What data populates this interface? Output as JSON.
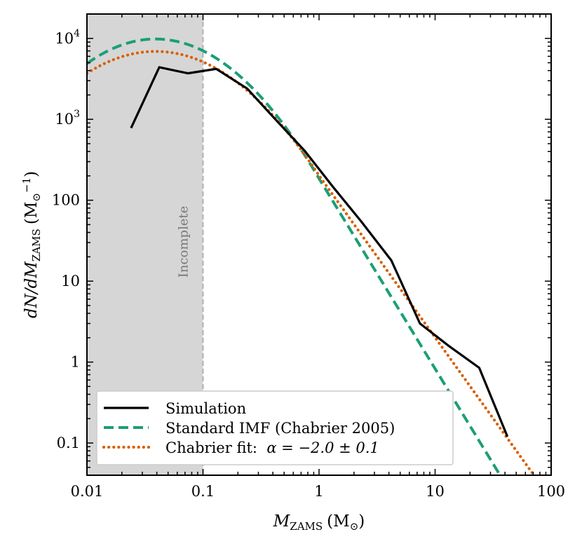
{
  "chart_data": {
    "type": "line",
    "xscale": "log",
    "yscale": "log",
    "xlim": [
      0.01,
      100
    ],
    "ylim": [
      0.04,
      20000
    ],
    "xlabel_main": "M",
    "xlabel_sub": "ZAMS",
    "xlabel_unit": "(M",
    "xlabel_unit_sub": "⊙",
    "xlabel_close": ")",
    "ylabel_main": "dN/dM",
    "ylabel_sub": "ZAMS",
    "ylabel_unit": "(M",
    "ylabel_unit_sub": "⊙",
    "ylabel_unit_sup": "−1",
    "ylabel_close": ")",
    "x_ticks": [
      {
        "value": 0.01,
        "label": "0.01"
      },
      {
        "value": 0.1,
        "label": "0.1"
      },
      {
        "value": 1,
        "label": "1"
      },
      {
        "value": 10,
        "label": "10"
      },
      {
        "value": 100,
        "label": "100"
      }
    ],
    "y_ticks": [
      {
        "value": 0.1,
        "label": "0.1"
      },
      {
        "value": 1,
        "label": "1"
      },
      {
        "value": 10,
        "label": "10"
      },
      {
        "value": 100,
        "label": "100"
      },
      {
        "value": 1000,
        "label_base": "10",
        "label_exp": "3"
      },
      {
        "value": 10000,
        "label_base": "10",
        "label_exp": "4"
      }
    ],
    "shaded_region": {
      "x_start": 0.01,
      "x_end": 0.1,
      "label": "Incomplete",
      "color": "#d6d6d6",
      "line_color": "#b0b0b0"
    },
    "series": [
      {
        "name": "Simulation",
        "color": "#000000",
        "style": "solid",
        "x": [
          0.024,
          0.042,
          0.074,
          0.13,
          0.24,
          0.42,
          0.75,
          1.3,
          2.3,
          4.2,
          7.4,
          13,
          24,
          42
        ],
        "y": [
          780,
          4400,
          3700,
          4200,
          2400,
          1000,
          410,
          150,
          55,
          18,
          3.0,
          1.6,
          0.85,
          0.12
        ]
      },
      {
        "name": "Standard IMF (Chabrier 2005)",
        "color": "#1b9e77",
        "style": "dashed",
        "curve": {
          "A": 9820,
          "mc": 0.039,
          "sigma": 0.5,
          "x_break": 1.0,
          "alpha": -2.35,
          "x_end": 100
        }
      },
      {
        "name": "Chabrier fit: α = −2.0 ± 0.1",
        "color": "#d95f02",
        "style": "dotted",
        "curve": {
          "A": 6900,
          "mc": 0.039,
          "sigma": 0.53,
          "x_break": 1.0,
          "alpha": -2.0,
          "x_end": 100
        }
      }
    ],
    "legend": {
      "position": "bottom-left",
      "entries": [
        {
          "text": "Simulation"
        },
        {
          "text": "Standard IMF (Chabrier 2005)"
        },
        {
          "text_prefix": "Chabrier fit:  ",
          "text_math": "α = −2.0 ± 0.1"
        }
      ]
    }
  }
}
